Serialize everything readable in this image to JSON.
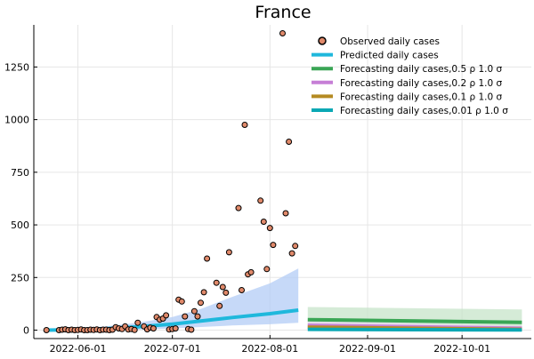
{
  "chart_data": {
    "type": "scatter",
    "title": "France",
    "xlabel": "",
    "ylabel": "",
    "x_axis": {
      "kind": "date",
      "range": [
        "2022-05-18",
        "2022-10-23"
      ],
      "ticks": [
        {
          "date": "2022-06-01",
          "label": "2022-06-01"
        },
        {
          "date": "2022-07-01",
          "label": "2022-07-01"
        },
        {
          "date": "2022-08-01",
          "label": "2022-08-01"
        },
        {
          "date": "2022-09-01",
          "label": "2022-09-01"
        },
        {
          "date": "2022-10-01",
          "label": "2022-10-01"
        }
      ]
    },
    "y_axis": {
      "range": [
        -40,
        1450
      ],
      "ticks": [
        {
          "value": 0,
          "label": "0"
        },
        {
          "value": 250,
          "label": "250"
        },
        {
          "value": 500,
          "label": "500"
        },
        {
          "value": 750,
          "label": "750"
        },
        {
          "value": 1000,
          "label": "1000"
        },
        {
          "value": 1250,
          "label": "1250"
        }
      ]
    },
    "grid": true,
    "legend_position": "top-right",
    "observed": {
      "name": "Observed daily cases",
      "color": "#e0896a",
      "points": [
        [
          "2022-05-22",
          0
        ],
        [
          "2022-05-26",
          0
        ],
        [
          "2022-05-27",
          2
        ],
        [
          "2022-05-28",
          4
        ],
        [
          "2022-05-29",
          0
        ],
        [
          "2022-05-30",
          2
        ],
        [
          "2022-05-31",
          0
        ],
        [
          "2022-06-01",
          1
        ],
        [
          "2022-06-02",
          3
        ],
        [
          "2022-06-03",
          0
        ],
        [
          "2022-06-04",
          0
        ],
        [
          "2022-06-05",
          2
        ],
        [
          "2022-06-06",
          1
        ],
        [
          "2022-06-07",
          3
        ],
        [
          "2022-06-08",
          0
        ],
        [
          "2022-06-09",
          2
        ],
        [
          "2022-06-10",
          2
        ],
        [
          "2022-06-11",
          0
        ],
        [
          "2022-06-12",
          2
        ],
        [
          "2022-06-13",
          14
        ],
        [
          "2022-06-14",
          8
        ],
        [
          "2022-06-15",
          5
        ],
        [
          "2022-06-16",
          18
        ],
        [
          "2022-06-17",
          3
        ],
        [
          "2022-06-18",
          5
        ],
        [
          "2022-06-19",
          1
        ],
        [
          "2022-06-20",
          35
        ],
        [
          "2022-06-22",
          18
        ],
        [
          "2022-06-23",
          4
        ],
        [
          "2022-06-24",
          12
        ],
        [
          "2022-06-25",
          8
        ],
        [
          "2022-06-26",
          62
        ],
        [
          "2022-06-27",
          50
        ],
        [
          "2022-06-28",
          55
        ],
        [
          "2022-06-29",
          70
        ],
        [
          "2022-06-30",
          3
        ],
        [
          "2022-07-01",
          5
        ],
        [
          "2022-07-02",
          8
        ],
        [
          "2022-07-03",
          145
        ],
        [
          "2022-07-04",
          136
        ],
        [
          "2022-07-05",
          65
        ],
        [
          "2022-07-06",
          5
        ],
        [
          "2022-07-07",
          2
        ],
        [
          "2022-07-08",
          90
        ],
        [
          "2022-07-09",
          65
        ],
        [
          "2022-07-10",
          130
        ],
        [
          "2022-07-11",
          180
        ],
        [
          "2022-07-12",
          340
        ],
        [
          "2022-07-15",
          225
        ],
        [
          "2022-07-16",
          115
        ],
        [
          "2022-07-17",
          205
        ],
        [
          "2022-07-18",
          178
        ],
        [
          "2022-07-19",
          370
        ],
        [
          "2022-07-22",
          580
        ],
        [
          "2022-07-23",
          190
        ],
        [
          "2022-07-24",
          975
        ],
        [
          "2022-07-25",
          265
        ],
        [
          "2022-07-26",
          275
        ],
        [
          "2022-07-29",
          615
        ],
        [
          "2022-07-30",
          515
        ],
        [
          "2022-07-31",
          290
        ],
        [
          "2022-08-01",
          485
        ],
        [
          "2022-08-02",
          405
        ],
        [
          "2022-08-05",
          1410
        ],
        [
          "2022-08-06",
          555
        ],
        [
          "2022-08-07",
          895
        ],
        [
          "2022-08-08",
          365
        ],
        [
          "2022-08-09",
          400
        ]
      ]
    },
    "predicted": {
      "name": "Predicted daily cases",
      "color": "#1fb8dc",
      "band_color": "#b3ccf5",
      "line": [
        [
          "2022-05-22",
          0
        ],
        [
          "2022-06-01",
          2
        ],
        [
          "2022-06-10",
          7
        ],
        [
          "2022-06-20",
          16
        ],
        [
          "2022-07-01",
          29
        ],
        [
          "2022-07-10",
          43
        ],
        [
          "2022-07-20",
          60
        ],
        [
          "2022-08-01",
          78
        ],
        [
          "2022-08-10",
          95
        ]
      ],
      "band": [
        [
          "2022-05-22",
          0,
          3
        ],
        [
          "2022-06-01",
          0,
          8
        ],
        [
          "2022-06-10",
          0,
          18
        ],
        [
          "2022-06-20",
          2,
          35
        ],
        [
          "2022-07-01",
          8,
          62
        ],
        [
          "2022-07-10",
          15,
          100
        ],
        [
          "2022-07-20",
          22,
          158
        ],
        [
          "2022-08-01",
          28,
          222
        ],
        [
          "2022-08-10",
          35,
          293
        ]
      ]
    },
    "forecasts": [
      {
        "name": "Forecasting daily cases,0.5 ρ 1.0 σ",
        "color": "#3aa655",
        "band_color": "#c3e3c6",
        "line": [
          [
            "2022-08-13",
            50
          ],
          [
            "2022-10-20",
            37
          ]
        ],
        "band": [
          [
            "2022-08-13",
            5,
            110
          ],
          [
            "2022-10-20",
            2,
            98
          ]
        ]
      },
      {
        "name": "Forecasting daily cases,0.2 ρ 1.0 σ",
        "color": "#c67fd6",
        "band_color": "#ead5ef",
        "line": [
          [
            "2022-08-13",
            23
          ],
          [
            "2022-10-20",
            9
          ]
        ],
        "band": [
          [
            "2022-08-13",
            2,
            45
          ],
          [
            "2022-10-20",
            0,
            20
          ]
        ]
      },
      {
        "name": "Forecasting daily cases,0.1 ρ 1.0 σ",
        "color": "#b58a22",
        "band_color": "#eadcb8",
        "line": [
          [
            "2022-08-13",
            14
          ],
          [
            "2022-10-20",
            4
          ]
        ],
        "band": [
          [
            "2022-08-13",
            1,
            30
          ],
          [
            "2022-10-20",
            0,
            10
          ]
        ]
      },
      {
        "name": "Forecasting daily cases,0.01 ρ 1.0 σ",
        "color": "#0aa8b4",
        "band_color": "#bfe6ea",
        "line": [
          [
            "2022-08-13",
            4
          ],
          [
            "2022-10-20",
            1
          ]
        ],
        "band": [
          [
            "2022-08-13",
            0,
            12
          ],
          [
            "2022-10-20",
            0,
            4
          ]
        ]
      }
    ]
  }
}
